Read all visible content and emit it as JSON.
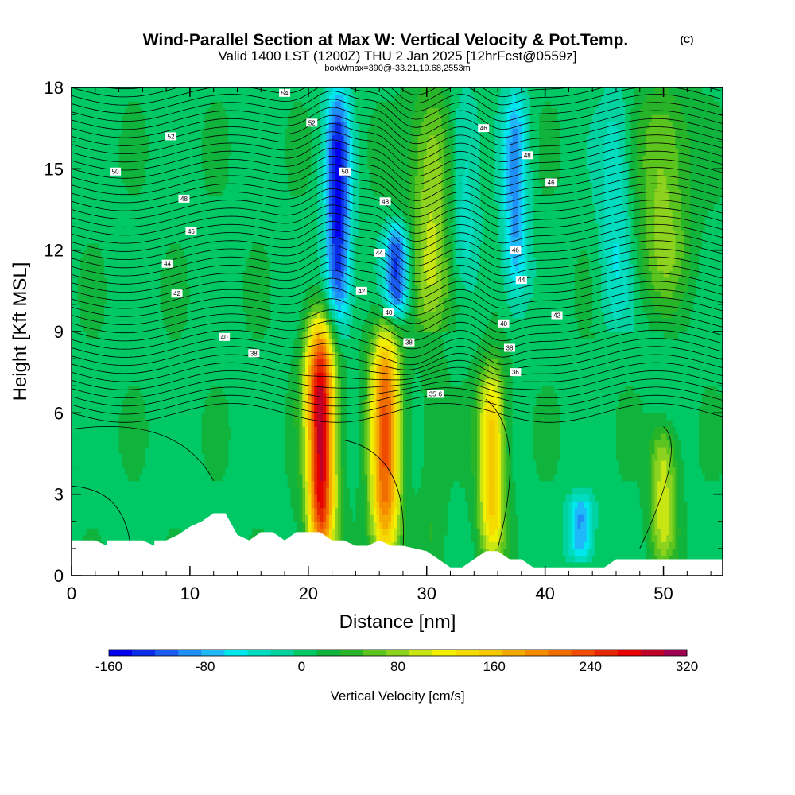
{
  "chart_data": {
    "type": "heatmap",
    "title": "Wind-Parallel Section at Max W: Vertical Velocity & Pot.Temp.",
    "title_mark": "(C)",
    "subtitle": "Valid 1400 LST (1200Z) THU 2 Jan 2025 [12hrFcst@0559z]",
    "subtitle2": "boxWmax=390@-33.21,19.68,2553m",
    "xlabel": "Distance [nm]",
    "ylabel": "Height [Kft MSL]",
    "xlim": [
      0,
      55
    ],
    "ylim": [
      0,
      18
    ],
    "x_ticks": [
      "0",
      "10",
      "20",
      "30",
      "40",
      "50"
    ],
    "y_ticks": [
      "0",
      "3",
      "6",
      "9",
      "12",
      "15",
      "18"
    ],
    "colorbar": {
      "label": "Vertical Velocity [cm/s]",
      "min": -160,
      "max": 320,
      "step": 20,
      "tick_labels": [
        "-160",
        "-80",
        "0",
        "80",
        "160",
        "240",
        "320"
      ],
      "colors": [
        "#0000ee",
        "#0a2ee8",
        "#1a5cf0",
        "#1f8ff5",
        "#1fb8f8",
        "#00e8ee",
        "#00dcc0",
        "#00d2a0",
        "#00c864",
        "#10b43c",
        "#28b428",
        "#5cc41e",
        "#8cd21e",
        "#c8e614",
        "#f0f000",
        "#f5dc00",
        "#f5c800",
        "#f5aa00",
        "#f58c00",
        "#f06e00",
        "#f04b00",
        "#e62800",
        "#e60000",
        "#be0028",
        "#a00050"
      ]
    },
    "updrafts": [
      {
        "x": 21,
        "y_range": [
          0.5,
          9.5
        ],
        "max": 300
      },
      {
        "x": 26.5,
        "y_range": [
          0.5,
          9.2
        ],
        "max": 220
      },
      {
        "x": 35.5,
        "y_range": [
          0.5,
          7.8
        ],
        "max": 160
      },
      {
        "x": 50,
        "y_range": [
          0.5,
          5.5
        ],
        "max": 100
      }
    ],
    "downdrafts": [
      {
        "x": 22.5,
        "y_range": [
          9,
          18
        ],
        "min": -160
      },
      {
        "x": 27.5,
        "y_range": [
          9.5,
          13
        ],
        "min": -140
      },
      {
        "x": 37.5,
        "y_range": [
          10,
          18
        ],
        "min": -100
      },
      {
        "x": 43,
        "y_range": [
          0.5,
          3
        ],
        "min": -100
      }
    ],
    "isentrope_labels": [
      "54",
      "52",
      "52",
      "50",
      "50",
      "48",
      "48",
      "48",
      "46",
      "46",
      "46",
      "46",
      "44",
      "44",
      "44",
      "42",
      "42",
      "42",
      "40",
      "40",
      "40",
      "38",
      "38",
      "38",
      "36",
      "36",
      "35"
    ],
    "terrain_kft": [
      [
        0,
        1.3
      ],
      [
        2,
        1.3
      ],
      [
        3,
        1.1
      ],
      [
        3,
        1.3
      ],
      [
        6,
        1.3
      ],
      [
        7,
        1.1
      ],
      [
        7,
        1.3
      ],
      [
        8,
        1.3
      ],
      [
        9,
        1.5
      ],
      [
        10,
        1.8
      ],
      [
        11,
        2.0
      ],
      [
        12,
        2.3
      ],
      [
        13,
        2.3
      ],
      [
        14,
        1.5
      ],
      [
        15,
        1.3
      ],
      [
        16,
        1.6
      ],
      [
        17,
        1.6
      ],
      [
        18,
        1.3
      ],
      [
        19,
        1.6
      ],
      [
        21,
        1.6
      ],
      [
        22,
        1.3
      ],
      [
        23,
        1.3
      ],
      [
        24,
        1.1
      ],
      [
        25,
        1.1
      ],
      [
        26,
        1.3
      ],
      [
        27,
        1.1
      ],
      [
        28,
        1.1
      ],
      [
        29,
        1.0
      ],
      [
        30,
        0.9
      ],
      [
        31,
        0.6
      ],
      [
        32,
        0.3
      ],
      [
        33,
        0.3
      ],
      [
        34,
        0.6
      ],
      [
        35,
        0.9
      ],
      [
        36,
        0.9
      ],
      [
        37,
        0.6
      ],
      [
        38,
        0.6
      ],
      [
        39,
        0.3
      ],
      [
        45,
        0.3
      ],
      [
        46,
        0.6
      ],
      [
        55,
        0.6
      ]
    ]
  }
}
